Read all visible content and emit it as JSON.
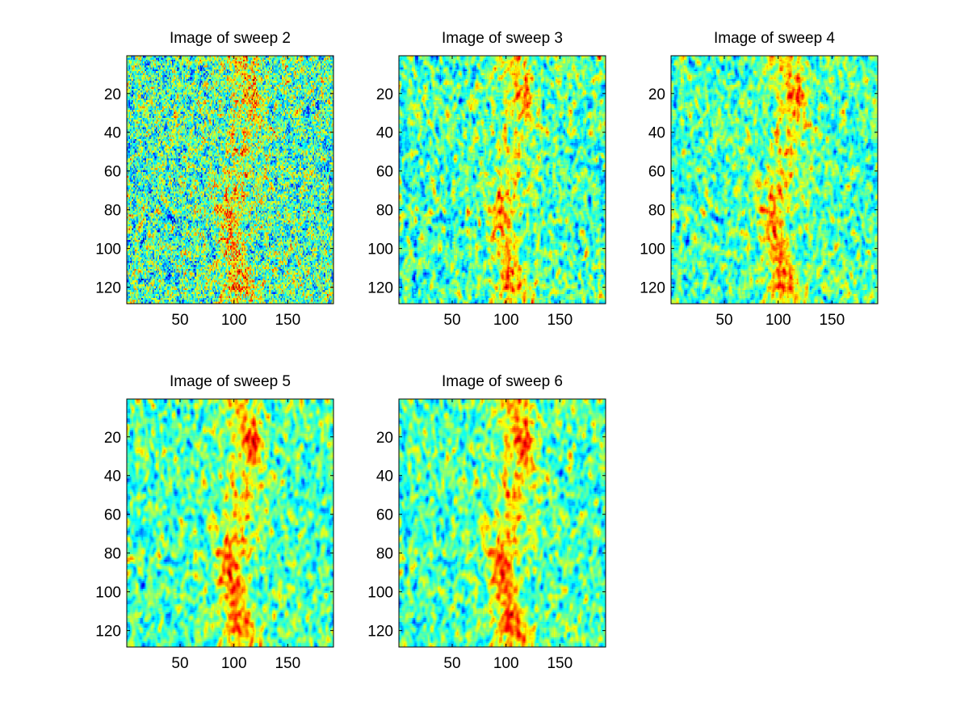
{
  "chart_data": [
    {
      "type": "heatmap",
      "title": "Image of sweep  2",
      "xlim": [
        0.5,
        192.5
      ],
      "ylim": [
        0.5,
        128.5
      ],
      "y_reversed": true,
      "xticks": [
        50,
        100,
        150
      ],
      "yticks": [
        20,
        40,
        60,
        80,
        100,
        120
      ],
      "colormap": "jet",
      "noise_level": 1.0,
      "smoothing": 0,
      "signal_strength": 0.55
    },
    {
      "type": "heatmap",
      "title": "Image of sweep  3",
      "xlim": [
        0.5,
        192.5
      ],
      "ylim": [
        0.5,
        128.5
      ],
      "y_reversed": true,
      "xticks": [
        50,
        100,
        150
      ],
      "yticks": [
        20,
        40,
        60,
        80,
        100,
        120
      ],
      "colormap": "jet",
      "noise_level": 0.8,
      "smoothing": 1,
      "signal_strength": 0.6
    },
    {
      "type": "heatmap",
      "title": "Image of sweep  4",
      "xlim": [
        0.5,
        192.5
      ],
      "ylim": [
        0.5,
        128.5
      ],
      "y_reversed": true,
      "xticks": [
        50,
        100,
        150
      ],
      "yticks": [
        20,
        40,
        60,
        80,
        100,
        120
      ],
      "colormap": "jet",
      "noise_level": 0.65,
      "smoothing": 1,
      "signal_strength": 0.7
    },
    {
      "type": "heatmap",
      "title": "Image of sweep  5",
      "xlim": [
        0.5,
        192.5
      ],
      "ylim": [
        0.5,
        128.5
      ],
      "y_reversed": true,
      "xticks": [
        50,
        100,
        150
      ],
      "yticks": [
        20,
        40,
        60,
        80,
        100,
        120
      ],
      "colormap": "jet",
      "noise_level": 0.55,
      "smoothing": 2,
      "signal_strength": 0.8
    },
    {
      "type": "heatmap",
      "title": "Image of sweep  6",
      "xlim": [
        0.5,
        192.5
      ],
      "ylim": [
        0.5,
        128.5
      ],
      "y_reversed": true,
      "xticks": [
        50,
        100,
        150
      ],
      "yticks": [
        20,
        40,
        60,
        80,
        100,
        120
      ],
      "colormap": "jet",
      "noise_level": 0.5,
      "smoothing": 2,
      "signal_strength": 0.85
    }
  ]
}
